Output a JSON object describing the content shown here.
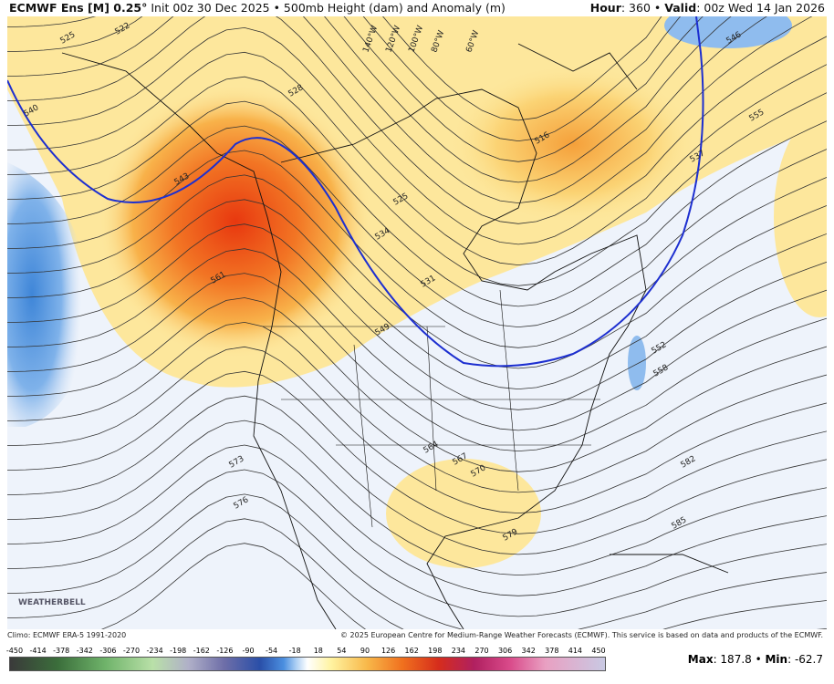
{
  "header": {
    "model": "ECMWF Ens [M] 0.25°",
    "init": "Init 00z 30 Dec 2025 • 500mb Height (dam) and Anomaly (m)",
    "hour_label": "Hour",
    "hour_value": ": 360 • ",
    "valid_label": "Valid",
    "valid_value": ": 00z Wed 14 Jan 2026"
  },
  "map": {
    "contour_labels": [
      "525",
      "522",
      "528",
      "540",
      "543",
      "561",
      "531",
      "534",
      "525",
      "516",
      "537",
      "555",
      "546",
      "549",
      "552",
      "558",
      "564",
      "567",
      "570",
      "573",
      "576",
      "579",
      "582",
      "585"
    ],
    "longitude_labels": [
      "140°W",
      "120°W",
      "100°W",
      "80°W",
      "60°W"
    ],
    "logo": "WEATHERBELL"
  },
  "footer": {
    "climo": "Climo: ECMWF ERA-5 1991-2020",
    "copyright": "© 2025 European Centre for Medium-Range Weather Forecasts (ECMWF). This service is based on data and products of the ECMWF.",
    "max_label": "Max",
    "max_value": ": 187.8 • ",
    "min_label": "Min",
    "min_value": ": -62.7"
  },
  "colorbar": {
    "ticks": [
      -450,
      -414,
      -378,
      -342,
      -306,
      -270,
      -234,
      -198,
      -162,
      -126,
      -90,
      -54,
      -18,
      18,
      54,
      90,
      126,
      162,
      198,
      234,
      270,
      306,
      342,
      378,
      414,
      450
    ]
  }
}
